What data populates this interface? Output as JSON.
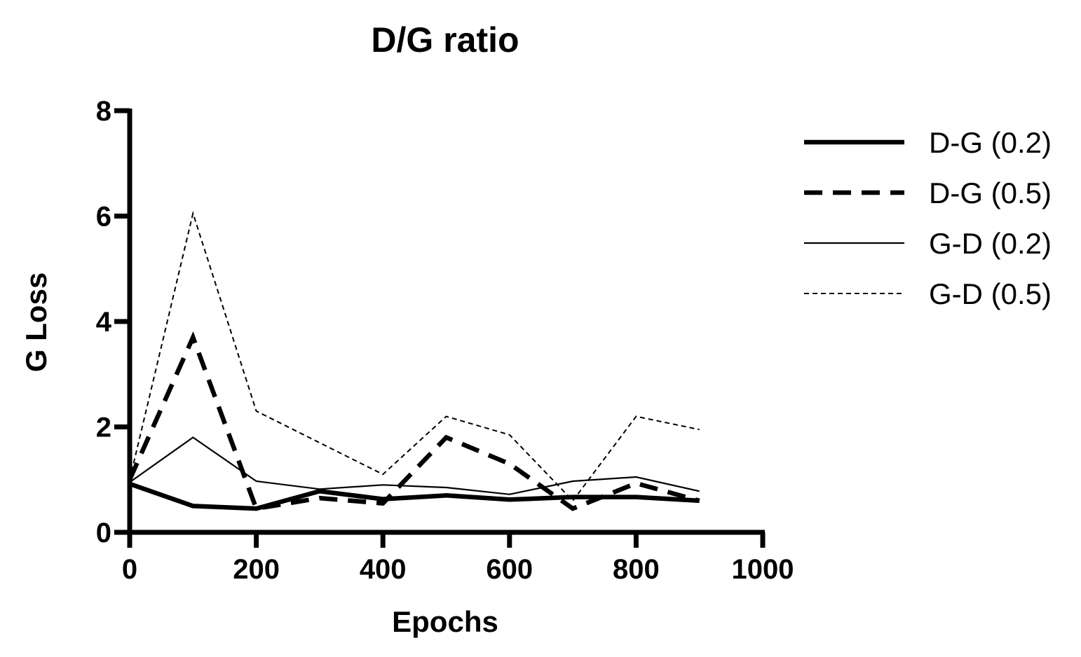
{
  "chart_data": {
    "type": "line",
    "title": "D/G ratio",
    "xlabel": "Epochs",
    "ylabel": "G Loss",
    "xlim": [
      0,
      1000
    ],
    "ylim": [
      0,
      8
    ],
    "xticks": [
      0,
      200,
      400,
      600,
      800,
      1000
    ],
    "yticks": [
      0,
      2,
      4,
      6,
      8
    ],
    "xtick_labels": [
      "0",
      "200",
      "400",
      "600",
      "800",
      "1000"
    ],
    "ytick_labels": [
      "0",
      "2",
      "4",
      "6",
      "8"
    ],
    "grid": false,
    "legend_position": "right",
    "x": [
      0,
      100,
      200,
      300,
      400,
      500,
      600,
      700,
      800,
      900
    ],
    "series": [
      {
        "name": "D-G (0.2)",
        "style": "thick-solid",
        "color": "#000000",
        "values": [
          0.92,
          0.5,
          0.45,
          0.78,
          0.63,
          0.7,
          0.62,
          0.67,
          0.67,
          0.6
        ]
      },
      {
        "name": "D-G (0.5)",
        "style": "thick-dashed",
        "color": "#000000",
        "values": [
          1.0,
          3.7,
          0.45,
          0.65,
          0.55,
          1.8,
          1.3,
          0.45,
          0.93,
          0.6
        ]
      },
      {
        "name": "G-D (0.2)",
        "style": "thin-solid",
        "color": "#000000",
        "values": [
          0.95,
          1.8,
          0.97,
          0.82,
          0.9,
          0.85,
          0.72,
          0.97,
          1.05,
          0.78
        ]
      },
      {
        "name": "G-D (0.5)",
        "style": "thin-dashed",
        "color": "#000000",
        "values": [
          1.0,
          6.05,
          2.3,
          1.7,
          1.1,
          2.2,
          1.85,
          0.6,
          2.2,
          1.95
        ]
      }
    ]
  }
}
